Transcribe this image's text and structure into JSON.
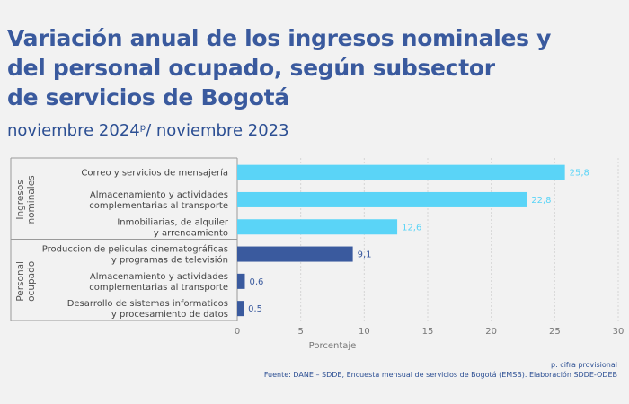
{
  "title_lines": [
    "Variación anual de los ingresos nominales y",
    "del personal ocupado, según subsector",
    "de servicios de Bogotá"
  ],
  "subtitle": {
    "prefix": "noviembre 2024",
    "superscript": "p",
    "suffix": "/ noviembre 2023"
  },
  "footer": {
    "note": "p: cifra provisional",
    "source": "Fuente: DANE – SDDE, Encuesta mensual de servicios de Bogotá (EMSB). Elaboración SDDE-ODEB"
  },
  "colors": {
    "ingresos": "#5ad4f7",
    "personal": "#3a5a9e",
    "title": "#3a5a9e"
  },
  "chart_data": {
    "type": "bar",
    "orientation": "horizontal",
    "xlabel": "Porcentaje",
    "xlim": [
      0,
      30
    ],
    "xticks": [
      0,
      5,
      10,
      15,
      20,
      25,
      30
    ],
    "grid": true,
    "groups": [
      {
        "name": "Ingresos nominales",
        "color": "#5ad4f7",
        "categories": [
          [
            "Correo y servicios de mensajería"
          ],
          [
            "Almacenamiento y actividades",
            "complementarias al transporte"
          ],
          [
            "Inmobiliarias,  de alquiler",
            "y arrendamiento"
          ]
        ],
        "values": [
          25.8,
          22.8,
          12.6
        ],
        "value_labels": [
          "25,8",
          "22,8",
          "12,6"
        ]
      },
      {
        "name": "Personal ocupado",
        "color": "#3a5a9e",
        "categories": [
          [
            "Produccion de peliculas cinematográficas",
            "y programas de televisión"
          ],
          [
            "Almacenamiento y actividades",
            "complementarias al transporte"
          ],
          [
            "Desarrollo de sistemas informaticos",
            "y procesamiento de datos"
          ]
        ],
        "values": [
          9.1,
          0.6,
          0.5
        ],
        "value_labels": [
          "9,1",
          "0,6",
          "0,5"
        ]
      }
    ]
  }
}
